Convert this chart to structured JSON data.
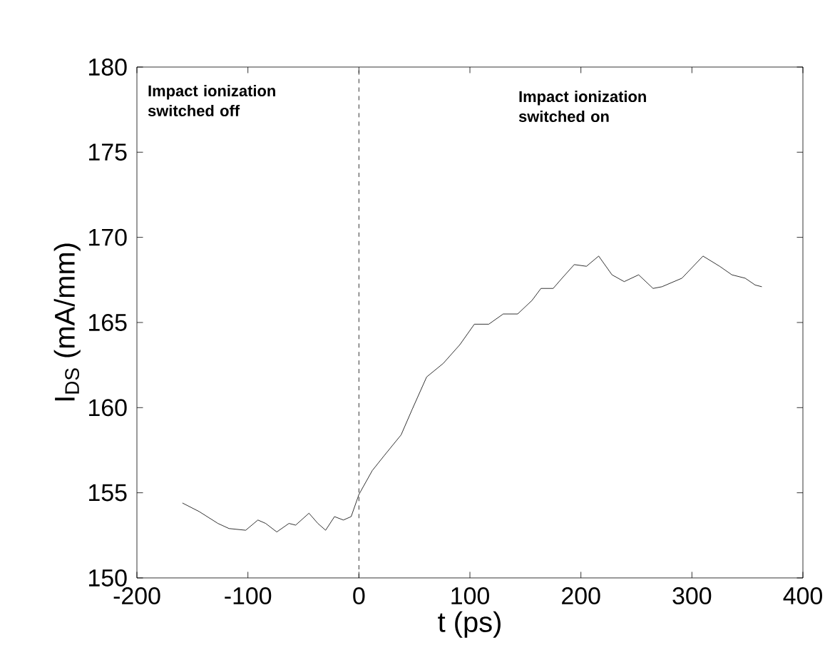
{
  "chart_data": {
    "type": "line",
    "xlabel": "t (ps)",
    "ylabel": "I$_{DS}$ (mA/mm)",
    "xlim": [
      -200,
      400
    ],
    "xticks": [
      -200,
      -100,
      0,
      100,
      200,
      300,
      400
    ],
    "ylim": [
      150,
      180
    ],
    "yticks": [
      150,
      155,
      160,
      165,
      170,
      175,
      180
    ],
    "x": [
      -159,
      -144,
      -127,
      -117,
      -102,
      -91,
      -84,
      -74,
      -63,
      -57,
      -45,
      -37,
      -30,
      -22,
      -14,
      -7,
      0,
      12,
      23,
      38,
      48,
      61,
      76,
      91,
      104,
      117,
      130,
      143,
      156,
      164,
      175,
      183,
      194,
      205,
      216,
      228,
      239,
      252,
      265,
      273,
      291,
      310,
      325,
      336,
      348,
      357,
      363
    ],
    "series": [
      {
        "color": "#000000",
        "values": [
          154.4,
          153.9,
          153.2,
          152.9,
          152.8,
          153.4,
          153.2,
          152.7,
          153.2,
          153.1,
          153.8,
          153.2,
          152.8,
          153.6,
          153.4,
          153.6,
          154.9,
          156.3,
          157.2,
          158.4,
          159.9,
          161.8,
          162.6,
          163.7,
          164.9,
          164.9,
          165.5,
          165.5,
          166.3,
          167.0,
          167.0,
          167.6,
          168.4,
          168.3,
          168.9,
          167.8,
          167.4,
          167.8,
          167.0,
          167.1,
          167.6,
          168.9,
          168.3,
          167.8,
          167.6,
          167.2,
          167.1
        ]
      }
    ],
    "ref_lines": [
      {
        "axis": "x",
        "value": 0,
        "color": "#000000",
        "line_style": "dashed"
      }
    ],
    "annotations": [
      "Impact ionization switched off",
      "Impact ionization switched on"
    ],
    "line_style": "solid"
  }
}
